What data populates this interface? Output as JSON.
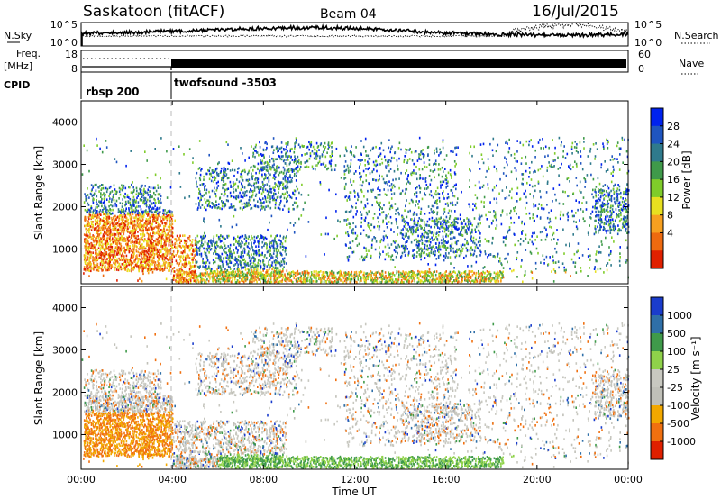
{
  "header": {
    "station": "Saskatoon (fitACF)",
    "beam": "Beam 04",
    "date": "16/Jul/2015"
  },
  "nsky_panel": {
    "left_label": "N.Sky",
    "right_label": "N.Search",
    "left_ticks": [
      "10^5",
      "10^0"
    ],
    "right_ticks": [
      "10^5",
      "10^0"
    ]
  },
  "freq_panel": {
    "left_label_1": "Freq.",
    "left_label_2": "[MHz]",
    "left_ticks": [
      "18",
      "8"
    ],
    "right_label": "Nave",
    "right_ticks": [
      "60",
      "0"
    ]
  },
  "cpid_panel": {
    "label": "CPID",
    "modes": [
      {
        "name": "rbsp 200",
        "start_hour": 0
      },
      {
        "name": "twofsound -3503",
        "start_hour": 4
      }
    ]
  },
  "chart_data": [
    {
      "type": "heatmap",
      "name": "power",
      "ylabel": "Slant Range [km]",
      "ylim": [
        180,
        4500
      ],
      "yticks": [
        1000,
        2000,
        3000,
        4000
      ],
      "xlim": [
        0,
        24
      ],
      "colorbar": {
        "label": "Power [dB]",
        "ticks": [
          "28",
          "24",
          "20",
          "16",
          "12",
          "8",
          "4"
        ],
        "colors": [
          "#0022ee",
          "#1f55c0",
          "#2f7a8c",
          "#3f9a4a",
          "#7fcc2a",
          "#e8e020",
          "#f7a020",
          "#ee6a10",
          "#e02000"
        ]
      }
    },
    {
      "type": "heatmap",
      "name": "velocity",
      "ylabel": "Slant Range [km]",
      "ylim": [
        180,
        4500
      ],
      "yticks": [
        1000,
        2000,
        3000,
        4000
      ],
      "xlim": [
        0,
        24
      ],
      "colorbar": {
        "label": "Velocity [m s⁻¹]",
        "ticks": [
          "1000",
          "500",
          "100",
          "25",
          "-25",
          "-100",
          "-500",
          "-1000"
        ],
        "colors": [
          "#1a3ccc",
          "#2f6fa8",
          "#3f9a4a",
          "#8fd24a",
          "#c8c8c0",
          "#c0c0b8",
          "#f2a800",
          "#f07010",
          "#e02000"
        ]
      }
    }
  ],
  "x_axis": {
    "label": "Time UT",
    "ticks": [
      "00:00",
      "04:00",
      "08:00",
      "12:00",
      "16:00",
      "20:00",
      "00:00"
    ]
  }
}
